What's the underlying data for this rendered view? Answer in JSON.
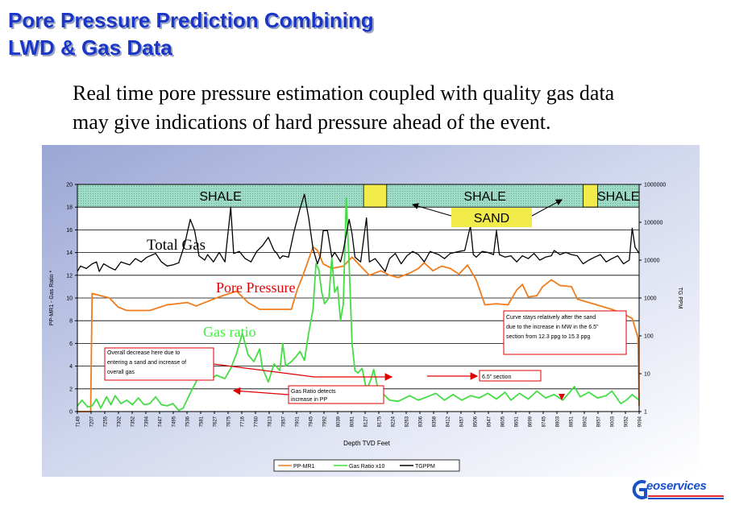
{
  "header": {
    "title_line1": "Pore Pressure Prediction Combining",
    "title_line2": "LWD & Gas Data",
    "subtitle_line1": "Real time pore pressure estimation coupled with quality gas data",
    "subtitle_line2": "may give indications of hard pressure ahead of the event."
  },
  "chart_data": {
    "type": "line",
    "xlabel": "Depth TVD Feet",
    "ylabel_left": "PP-MR1 - Gas Ratio *",
    "ylabel_right": "TG PPM",
    "x_ticks": [
      "7149",
      "7207",
      "7255",
      "7302",
      "7352",
      "7394",
      "7447",
      "7495",
      "7536",
      "7581",
      "7627",
      "7675",
      "7716",
      "7760",
      "7813",
      "7857",
      "7901",
      "7945",
      "7992",
      "8039",
      "8081",
      "8127",
      "8175",
      "8224",
      "8263",
      "8306",
      "8358",
      "8412",
      "8457",
      "8506",
      "8547",
      "8605",
      "8651",
      "8699",
      "8745",
      "8803",
      "8851",
      "8902",
      "8957",
      "9003",
      "9052",
      "9094"
    ],
    "left_axis": {
      "min": 0,
      "max": 20,
      "step": 2,
      "ticks": [
        "0",
        "2",
        "4",
        "6",
        "8",
        "10",
        "12",
        "14",
        "16",
        "18",
        "20"
      ]
    },
    "right_axis": {
      "scale": "log",
      "ticks": [
        "1",
        "10",
        "100",
        "1000",
        "10000",
        "100000",
        "1000000"
      ]
    },
    "lithology_bands": [
      {
        "label": "SHALE",
        "from": 7149,
        "to": 8140
      },
      {
        "label": "SHALE",
        "from": 8220,
        "to": 8900
      },
      {
        "label": "SHALE",
        "from": 8950,
        "to": 9094
      }
    ],
    "sand_label": "SAND",
    "series": [
      {
        "name": "PP-MR1",
        "color": "#f07c1c",
        "axis": "left",
        "points": [
          [
            7149,
            0
          ],
          [
            7180,
            0
          ],
          [
            7195,
            0
          ],
          [
            7200,
            10.4
          ],
          [
            7260,
            10.0
          ],
          [
            7290,
            9.2
          ],
          [
            7320,
            8.9
          ],
          [
            7400,
            8.9
          ],
          [
            7460,
            9.4
          ],
          [
            7530,
            9.6
          ],
          [
            7560,
            9.3
          ],
          [
            7640,
            10.1
          ],
          [
            7700,
            10.6
          ],
          [
            7740,
            9.6
          ],
          [
            7780,
            9.0
          ],
          [
            7860,
            9.0
          ],
          [
            7890,
            9.0
          ],
          [
            7910,
            10.7
          ],
          [
            7930,
            12.0
          ],
          [
            7950,
            13.4
          ],
          [
            7965,
            14.5
          ],
          [
            7980,
            14.2
          ],
          [
            8000,
            13.0
          ],
          [
            8030,
            12.6
          ],
          [
            8070,
            12.8
          ],
          [
            8100,
            13.6
          ],
          [
            8130,
            12.8
          ],
          [
            8160,
            12.0
          ],
          [
            8200,
            12.4
          ],
          [
            8230,
            12.0
          ],
          [
            8260,
            11.8
          ],
          [
            8300,
            12.2
          ],
          [
            8330,
            12.6
          ],
          [
            8350,
            13.1
          ],
          [
            8380,
            12.4
          ],
          [
            8410,
            12.8
          ],
          [
            8440,
            12.6
          ],
          [
            8470,
            12.1
          ],
          [
            8500,
            12.9
          ],
          [
            8530,
            11.6
          ],
          [
            8560,
            9.4
          ],
          [
            8600,
            9.5
          ],
          [
            8640,
            9.4
          ],
          [
            8670,
            10.7
          ],
          [
            8690,
            11.2
          ],
          [
            8710,
            10.1
          ],
          [
            8740,
            10.2
          ],
          [
            8760,
            11.0
          ],
          [
            8790,
            11.6
          ],
          [
            8820,
            11.1
          ],
          [
            8860,
            11.0
          ],
          [
            8880,
            9.9
          ],
          [
            8920,
            9.6
          ],
          [
            8960,
            9.3
          ],
          [
            9000,
            9.0
          ],
          [
            9040,
            8.6
          ],
          [
            9070,
            8.2
          ],
          [
            9090,
            6.5
          ],
          [
            9094,
            0.5
          ]
        ]
      },
      {
        "name": "Gas Ratio x10",
        "color": "#44dd44",
        "axis": "left",
        "points": [
          [
            7149,
            0.5
          ],
          [
            7165,
            1.0
          ],
          [
            7185,
            0.4
          ],
          [
            7200,
            0.5
          ],
          [
            7215,
            1.1
          ],
          [
            7230,
            0.3
          ],
          [
            7250,
            1.3
          ],
          [
            7265,
            0.6
          ],
          [
            7280,
            1.4
          ],
          [
            7300,
            0.7
          ],
          [
            7320,
            1.0
          ],
          [
            7340,
            0.6
          ],
          [
            7360,
            1.2
          ],
          [
            7380,
            0.6
          ],
          [
            7400,
            0.7
          ],
          [
            7420,
            1.3
          ],
          [
            7440,
            0.6
          ],
          [
            7460,
            0.5
          ],
          [
            7480,
            0.7
          ],
          [
            7500,
            0.1
          ],
          [
            7515,
            0.3
          ],
          [
            7530,
            1.1
          ],
          [
            7545,
            1.9
          ],
          [
            7560,
            2.6
          ],
          [
            7575,
            4.2
          ],
          [
            7590,
            3.4
          ],
          [
            7610,
            2.8
          ],
          [
            7630,
            3.2
          ],
          [
            7660,
            2.9
          ],
          [
            7680,
            3.8
          ],
          [
            7700,
            5.1
          ],
          [
            7720,
            6.9
          ],
          [
            7740,
            5.0
          ],
          [
            7760,
            4.4
          ],
          [
            7780,
            5.5
          ],
          [
            7790,
            3.8
          ],
          [
            7810,
            2.6
          ],
          [
            7830,
            4.2
          ],
          [
            7850,
            3.6
          ],
          [
            7860,
            6.0
          ],
          [
            7870,
            4.0
          ],
          [
            7890,
            4.4
          ],
          [
            7905,
            4.8
          ],
          [
            7920,
            5.3
          ],
          [
            7935,
            4.5
          ],
          [
            7950,
            6.9
          ],
          [
            7965,
            9.0
          ],
          [
            7975,
            13.0
          ],
          [
            7985,
            12.5
          ],
          [
            7995,
            10.5
          ],
          [
            8005,
            9.5
          ],
          [
            8020,
            10.0
          ],
          [
            8030,
            13.5
          ],
          [
            8040,
            10.5
          ],
          [
            8050,
            11.0
          ],
          [
            8060,
            8.0
          ],
          [
            8070,
            9.5
          ],
          [
            8080,
            18.8
          ],
          [
            8090,
            13.0
          ],
          [
            8100,
            6.0
          ],
          [
            8110,
            3.6
          ],
          [
            8120,
            3.4
          ],
          [
            8135,
            3.8
          ],
          [
            8150,
            1.9
          ],
          [
            8165,
            2.8
          ],
          [
            8175,
            3.7
          ],
          [
            8190,
            2.0
          ],
          [
            8210,
            1.5
          ],
          [
            8230,
            1.0
          ],
          [
            8260,
            0.9
          ],
          [
            8300,
            1.4
          ],
          [
            8330,
            1.0
          ],
          [
            8360,
            1.3
          ],
          [
            8390,
            1.6
          ],
          [
            8420,
            1.0
          ],
          [
            8450,
            1.5
          ],
          [
            8480,
            1.0
          ],
          [
            8510,
            1.4
          ],
          [
            8540,
            1.2
          ],
          [
            8570,
            1.6
          ],
          [
            8600,
            1.1
          ],
          [
            8630,
            1.7
          ],
          [
            8650,
            1.0
          ],
          [
            8680,
            1.6
          ],
          [
            8710,
            1.1
          ],
          [
            8740,
            1.8
          ],
          [
            8770,
            1.2
          ],
          [
            8800,
            1.5
          ],
          [
            8830,
            1.0
          ],
          [
            8850,
            1.6
          ],
          [
            8870,
            2.2
          ],
          [
            8890,
            1.3
          ],
          [
            8920,
            1.7
          ],
          [
            8950,
            1.2
          ],
          [
            8980,
            1.4
          ],
          [
            9000,
            1.8
          ],
          [
            9030,
            0.7
          ],
          [
            9050,
            1.0
          ],
          [
            9070,
            1.5
          ],
          [
            9094,
            1.0
          ]
        ]
      },
      {
        "name": "TGPPM",
        "color": "#000000",
        "axis": "right",
        "points": [
          [
            7149,
            5000
          ],
          [
            7160,
            7000
          ],
          [
            7180,
            6000
          ],
          [
            7200,
            8000
          ],
          [
            7215,
            9000
          ],
          [
            7225,
            5000
          ],
          [
            7240,
            8000
          ],
          [
            7260,
            6500
          ],
          [
            7280,
            5500
          ],
          [
            7300,
            9000
          ],
          [
            7330,
            7500
          ],
          [
            7350,
            11000
          ],
          [
            7370,
            9000
          ],
          [
            7390,
            12000
          ],
          [
            7420,
            15000
          ],
          [
            7440,
            9000
          ],
          [
            7460,
            7000
          ],
          [
            7480,
            7500
          ],
          [
            7500,
            8500
          ],
          [
            7520,
            25000
          ],
          [
            7540,
            120000
          ],
          [
            7555,
            60000
          ],
          [
            7570,
            13000
          ],
          [
            7590,
            10000
          ],
          [
            7600,
            14000
          ],
          [
            7620,
            9000
          ],
          [
            7640,
            16000
          ],
          [
            7660,
            9000
          ],
          [
            7680,
            250000
          ],
          [
            7690,
            15000
          ],
          [
            7710,
            17000
          ],
          [
            7730,
            11000
          ],
          [
            7750,
            9000
          ],
          [
            7770,
            17000
          ],
          [
            7790,
            24000
          ],
          [
            7810,
            40000
          ],
          [
            7830,
            18000
          ],
          [
            7840,
            15000
          ],
          [
            7850,
            11000
          ],
          [
            7860,
            13000
          ],
          [
            7880,
            12000
          ],
          [
            7900,
            60000
          ],
          [
            7920,
            230000
          ],
          [
            7935,
            550000
          ],
          [
            7950,
            130000
          ],
          [
            7965,
            20000
          ],
          [
            7980,
            8000
          ],
          [
            7990,
            13000
          ],
          [
            8000,
            60000
          ],
          [
            8015,
            60000
          ],
          [
            8030,
            12000
          ],
          [
            8040,
            16000
          ],
          [
            8060,
            9000
          ],
          [
            8070,
            18000
          ],
          [
            8090,
            120000
          ],
          [
            8100,
            50000
          ],
          [
            8110,
            12000
          ],
          [
            8130,
            9000
          ],
          [
            8150,
            130000
          ],
          [
            8160,
            9000
          ],
          [
            8180,
            11000
          ],
          [
            8200,
            7000
          ],
          [
            8215,
            5000
          ],
          [
            8230,
            11000
          ],
          [
            8250,
            15000
          ],
          [
            8270,
            8000
          ],
          [
            8290,
            13000
          ],
          [
            8310,
            17000
          ],
          [
            8330,
            14000
          ],
          [
            8350,
            9000
          ],
          [
            8370,
            17000
          ],
          [
            8400,
            14000
          ],
          [
            8420,
            11000
          ],
          [
            8440,
            15000
          ],
          [
            8470,
            17000
          ],
          [
            8490,
            18000
          ],
          [
            8510,
            80000
          ],
          [
            8520,
            14000
          ],
          [
            8530,
            12000
          ],
          [
            8550,
            17000
          ],
          [
            8570,
            16000
          ],
          [
            8590,
            14000
          ],
          [
            8600,
            60000
          ],
          [
            8610,
            14000
          ],
          [
            8630,
            12000
          ],
          [
            8650,
            13000
          ],
          [
            8670,
            9000
          ],
          [
            8690,
            13000
          ],
          [
            8710,
            11000
          ],
          [
            8730,
            15000
          ],
          [
            8750,
            10000
          ],
          [
            8770,
            12000
          ],
          [
            8790,
            13000
          ],
          [
            8800,
            18000
          ],
          [
            8820,
            14000
          ],
          [
            8840,
            16000
          ],
          [
            8860,
            14000
          ],
          [
            8880,
            13000
          ],
          [
            8900,
            8000
          ],
          [
            8920,
            10000
          ],
          [
            8940,
            12000
          ],
          [
            8960,
            14000
          ],
          [
            8980,
            9000
          ],
          [
            9000,
            11000
          ],
          [
            9020,
            13000
          ],
          [
            9040,
            8000
          ],
          [
            9060,
            10000
          ],
          [
            9070,
            70000
          ],
          [
            9080,
            22000
          ],
          [
            9094,
            15000
          ]
        ]
      }
    ],
    "series_labels": {
      "total_gas": "Total Gas",
      "pore_pressure": "Pore Pressure",
      "gas_ratio": "Gas ratio"
    },
    "annotations": {
      "overall_decrease": [
        "Overall decrease here due to",
        "entering a sand and increase of",
        "overall gas"
      ],
      "gas_ratio_detects": [
        "Gas Ratio detects",
        "increase in PP"
      ],
      "curve_stays": [
        "Curve stays relatively after the sand",
        "due to the increase in MW in the 6.5\"",
        "section from 12.3 ppg to 15.3 ppg"
      ],
      "section_label": "6.5\" section"
    },
    "legend": [
      "PP-MR1",
      "Gas Ratio x10",
      "TGPPM"
    ],
    "legend_position": "bottom",
    "grid": true
  },
  "branding": {
    "logo_text": "eoservices",
    "logo_letter": "G"
  },
  "colors": {
    "title": "#1a36c8",
    "frame_blue": "#c3cbe6",
    "shale_band": "#8ed0c0",
    "sand": "#f2ec4a",
    "brand_blue": "#1a50c8",
    "brand_red": "#e22a2a"
  }
}
